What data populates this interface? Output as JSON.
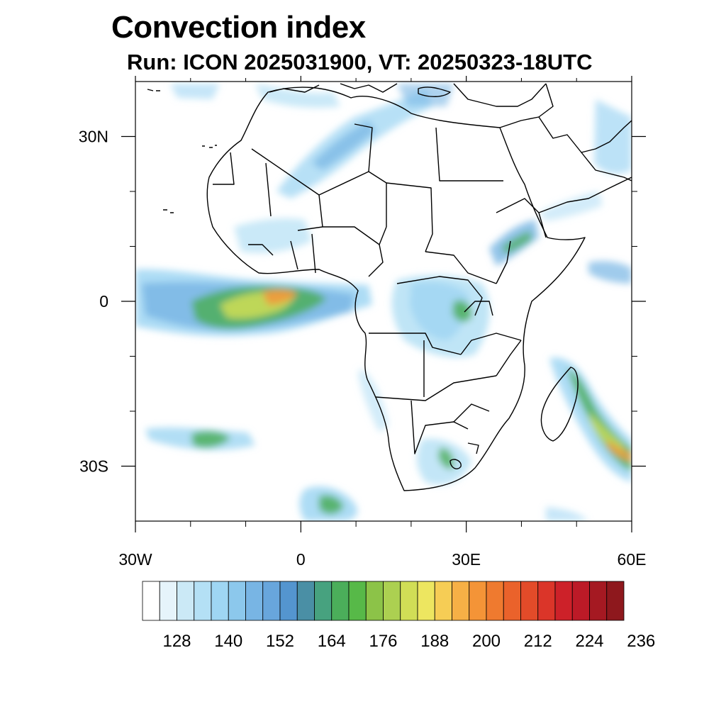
{
  "title": "Convection index",
  "subtitle": "Run: ICON 2025031900,  VT: 20250323-18UTC",
  "map": {
    "lon_range": [
      -30,
      60
    ],
    "lat_range": [
      -40,
      40
    ],
    "lon_ticks": [
      {
        "value": -30,
        "label": "30W"
      },
      {
        "value": 0,
        "label": "0"
      },
      {
        "value": 30,
        "label": "30E"
      },
      {
        "value": 60,
        "label": "60E"
      }
    ],
    "lat_ticks": [
      {
        "value": 30,
        "label": "30N"
      },
      {
        "value": 0,
        "label": "0"
      },
      {
        "value": -30,
        "label": "30S"
      }
    ],
    "minor_lon_ticks": [
      -20,
      -10,
      10,
      20,
      40,
      50
    ],
    "minor_lat_ticks": [
      20,
      10,
      -10,
      -20
    ]
  },
  "colorbar": {
    "colors": [
      "#ffffff",
      "#e6f4fb",
      "#cbe9f6",
      "#b4e0f5",
      "#9fd6f3",
      "#8cc8ec",
      "#78b5e4",
      "#68a6dc",
      "#5495cf",
      "#4a8fa5",
      "#47a27f",
      "#4bae5a",
      "#57b948",
      "#8cc348",
      "#acd051",
      "#d1de56",
      "#ede660",
      "#f6cd55",
      "#f6b046",
      "#f49437",
      "#ef7a2f",
      "#ea622b",
      "#e34b29",
      "#db3529",
      "#cd2129",
      "#bc1a27",
      "#a51922",
      "#8e181d"
    ],
    "labels": [
      "128",
      "140",
      "152",
      "164",
      "176",
      "188",
      "200",
      "212",
      "224",
      "236"
    ],
    "label_boxes": [
      2,
      5,
      8,
      11,
      14,
      17,
      20,
      23,
      26,
      29
    ]
  }
}
